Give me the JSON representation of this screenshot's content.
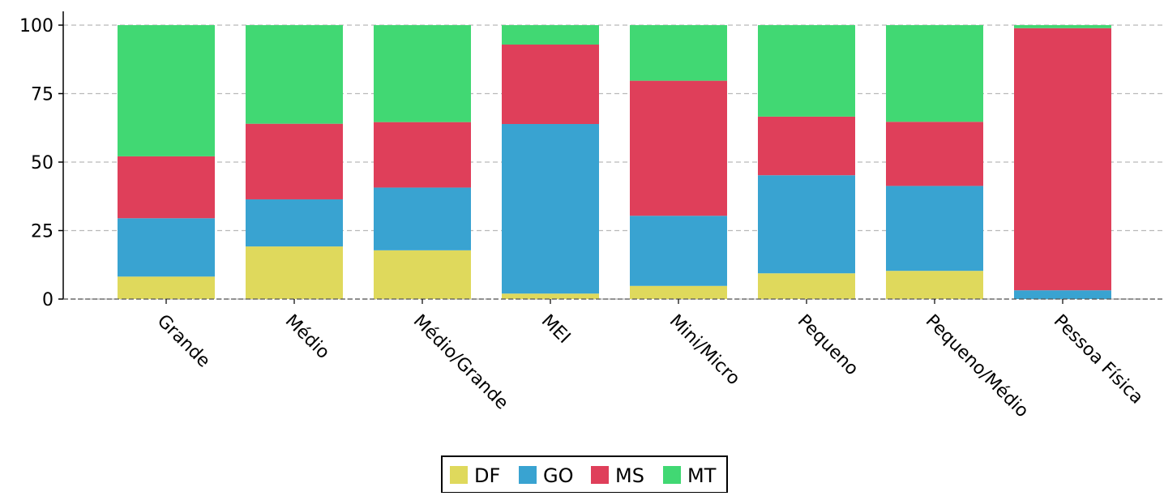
{
  "chart_data": {
    "type": "bar",
    "stacked": true,
    "categories": [
      "Grande",
      "Médio",
      "Médio/Grande",
      "MEI",
      "Mini/Micro",
      "Pequeno",
      "Pequeno/Médio",
      "Pessoa Física"
    ],
    "series": [
      {
        "name": "DF",
        "color": "#dfd95c",
        "values": [
          8.2,
          19.2,
          17.8,
          2.0,
          4.8,
          9.4,
          10.3,
          0.0
        ]
      },
      {
        "name": "GO",
        "color": "#39a3d1",
        "values": [
          21.3,
          17.2,
          22.9,
          61.9,
          25.6,
          35.8,
          31.0,
          3.2
        ]
      },
      {
        "name": "MS",
        "color": "#df3f5a",
        "values": [
          22.6,
          27.6,
          23.9,
          29.0,
          49.3,
          21.4,
          23.4,
          95.7
        ]
      },
      {
        "name": "MT",
        "color": "#41d873",
        "values": [
          47.9,
          36.0,
          35.4,
          7.1,
          20.3,
          33.4,
          35.3,
          1.1
        ]
      }
    ],
    "ylim": [
      0,
      100
    ],
    "yticks": [
      "0",
      "25",
      "50",
      "75",
      "100"
    ],
    "grid": "horizontal-dashed",
    "legend_position": "bottom-center"
  }
}
